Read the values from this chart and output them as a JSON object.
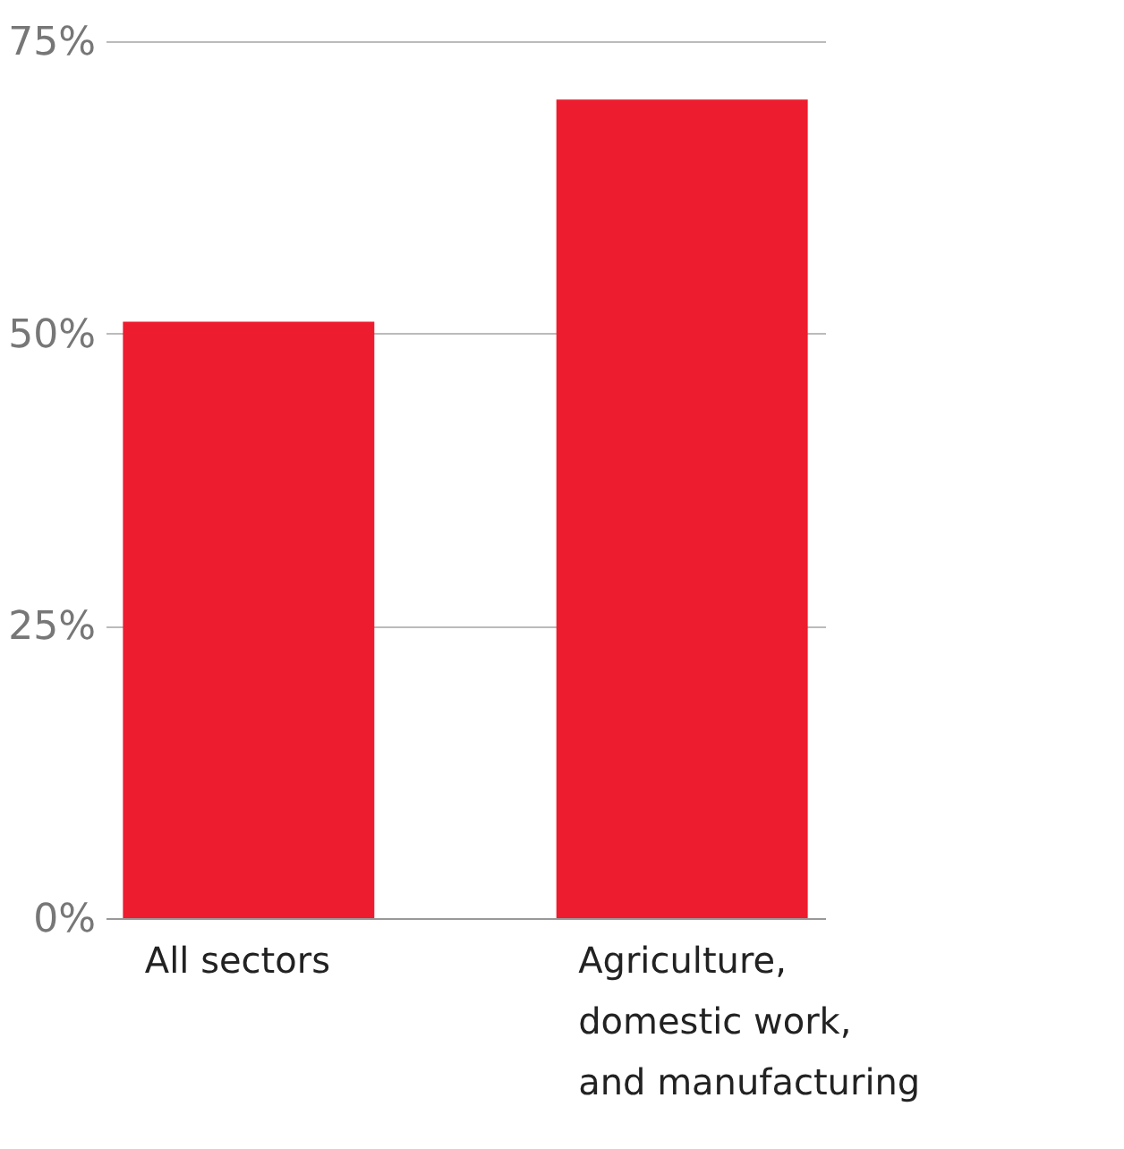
{
  "chart_data": {
    "type": "bar",
    "categories": [
      "All sectors",
      "Agriculture, domestic work, and manufacturing"
    ],
    "values": [
      51,
      70
    ],
    "color": "#ed1c2e",
    "ylim": [
      0,
      75
    ],
    "yticks": [
      {
        "value": 0,
        "label": "0%"
      },
      {
        "value": 25,
        "label": "25%"
      },
      {
        "value": 50,
        "label": "50%"
      },
      {
        "value": 75,
        "label": "75%"
      }
    ],
    "grid": "y"
  }
}
